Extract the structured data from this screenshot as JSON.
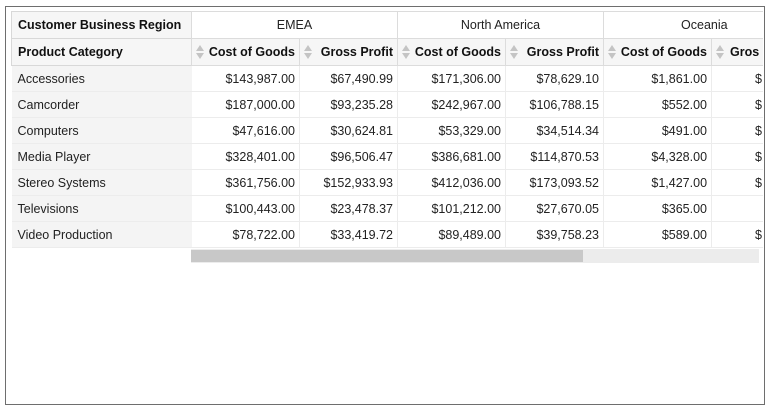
{
  "pivot": {
    "column_dimension_label": "Customer Business Region",
    "row_dimension_label": "Product Category",
    "regions": [
      "EMEA",
      "North America",
      "Oceania"
    ],
    "measures": [
      "Cost of Goods",
      "Gross Profit"
    ],
    "last_measure_truncated": "Gros",
    "rows": [
      {
        "category": "Accessories",
        "values": [
          "$143,987.00",
          "$67,490.99",
          "$171,306.00",
          "$78,629.10",
          "$1,861.00",
          "$"
        ]
      },
      {
        "category": "Camcorder",
        "values": [
          "$187,000.00",
          "$93,235.28",
          "$242,967.00",
          "$106,788.15",
          "$552.00",
          "$"
        ]
      },
      {
        "category": "Computers",
        "values": [
          "$47,616.00",
          "$30,624.81",
          "$53,329.00",
          "$34,514.34",
          "$491.00",
          "$"
        ]
      },
      {
        "category": "Media Player",
        "values": [
          "$328,401.00",
          "$96,506.47",
          "$386,681.00",
          "$114,870.53",
          "$4,328.00",
          "$1"
        ]
      },
      {
        "category": "Stereo Systems",
        "values": [
          "$361,756.00",
          "$152,933.93",
          "$412,036.00",
          "$173,093.52",
          "$1,427.00",
          "$"
        ]
      },
      {
        "category": "Televisions",
        "values": [
          "$100,443.00",
          "$23,478.37",
          "$101,212.00",
          "$27,670.05",
          "$365.00",
          ""
        ]
      },
      {
        "category": "Video Production",
        "values": [
          "$78,722.00",
          "$33,419.72",
          "$89,489.00",
          "$39,758.23",
          "$589.00",
          "$"
        ]
      }
    ]
  },
  "scrollbar": {
    "position_fraction": 0.0,
    "visible_fraction": 0.69
  }
}
